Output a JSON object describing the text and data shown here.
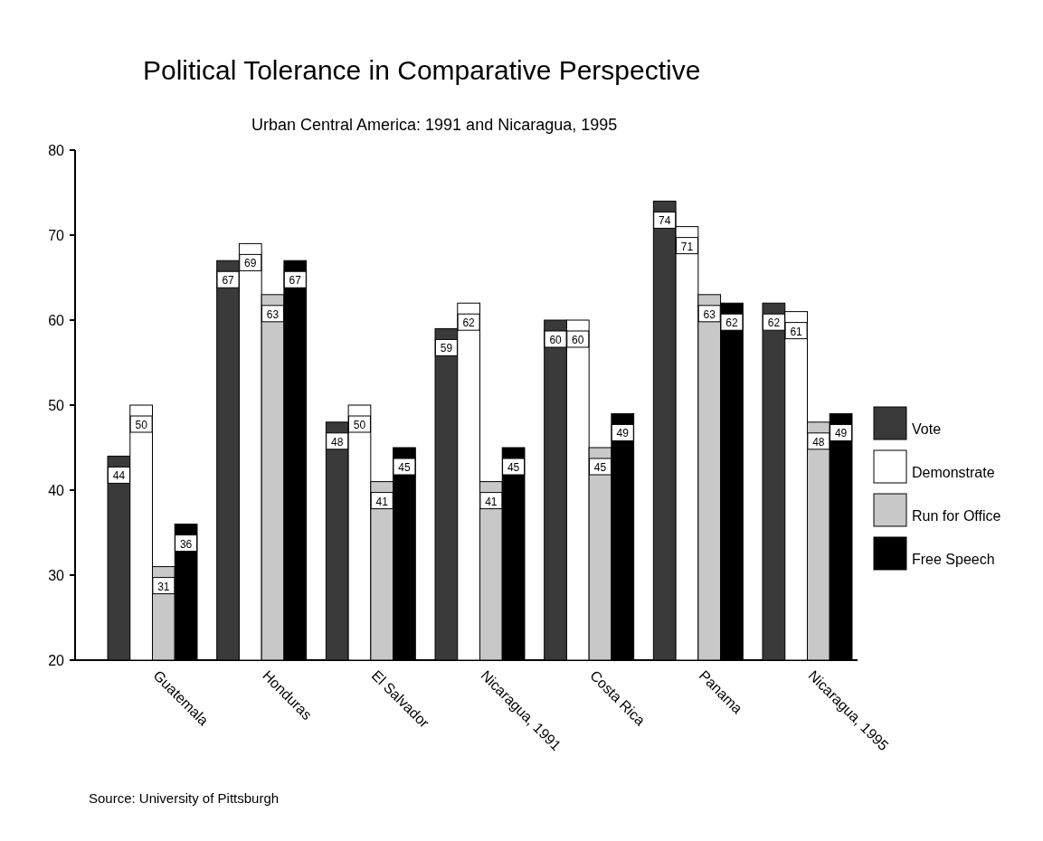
{
  "chart_data": {
    "type": "bar",
    "title": "Political Tolerance in Comparative Perspective",
    "subtitle": "Urban Central America:  1991 and Nicaragua, 1995",
    "categories": [
      "Guatemala",
      "Honduras",
      "El Salvador",
      "Nicaragua, 1991",
      "Costa Rica",
      "Panama",
      "Nicaragua, 1995"
    ],
    "series": [
      {
        "name": "Vote",
        "color": "#3a3a3a",
        "values": [
          44,
          67,
          48,
          59,
          60,
          74,
          62
        ]
      },
      {
        "name": "Demonstrate",
        "color": "#ffffff",
        "values": [
          50,
          69,
          50,
          62,
          60,
          71,
          61
        ]
      },
      {
        "name": "Run for Office",
        "color": "#c8c8c8",
        "values": [
          31,
          63,
          41,
          41,
          45,
          63,
          48
        ]
      },
      {
        "name": "Free Speech",
        "color": "#000000",
        "values": [
          36,
          67,
          45,
          45,
          49,
          62,
          49
        ]
      }
    ],
    "ylim": [
      20,
      80
    ],
    "yticks": [
      20,
      30,
      40,
      50,
      60,
      70,
      80
    ],
    "grid": false,
    "legend": "right",
    "data_labels": true,
    "annotations": [
      "Source:  University of Pittsburgh"
    ]
  }
}
